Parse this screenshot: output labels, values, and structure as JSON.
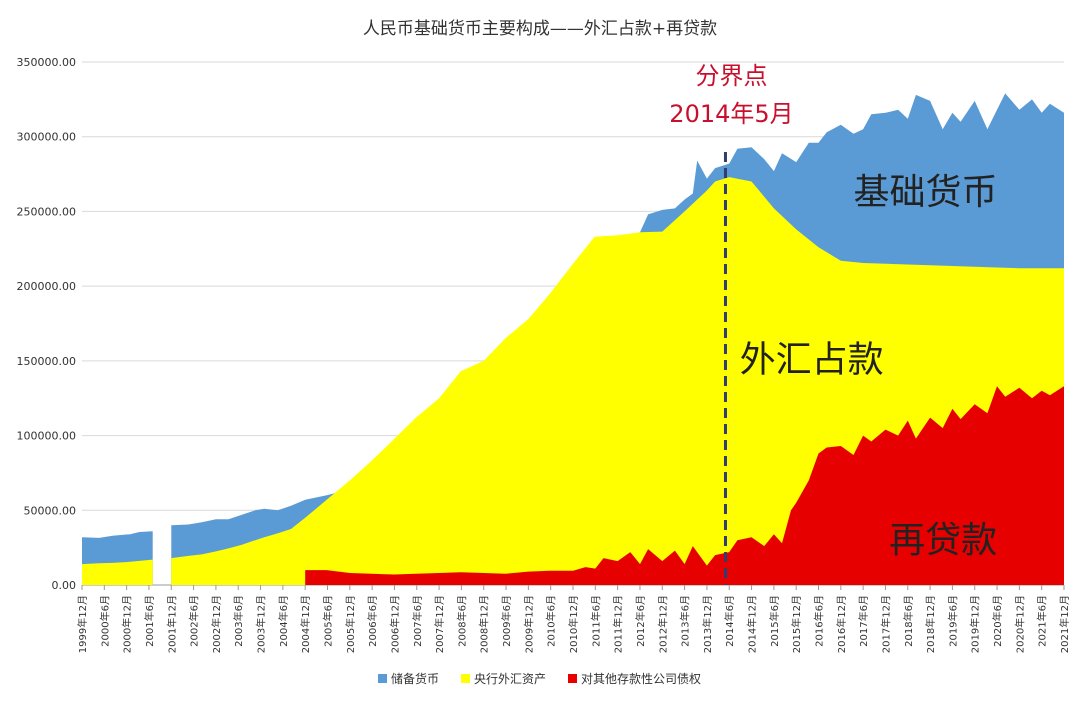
{
  "chart_data": {
    "type": "area",
    "title": "人民币基础货币主要构成——外汇占款+再贷款",
    "ylim": [
      0,
      350000
    ],
    "y_ticks": [
      "0.00",
      "50000.00",
      "100000.00",
      "150000.00",
      "200000.00",
      "250000.00",
      "300000.00",
      "350000.00"
    ],
    "y_tick_values": [
      0,
      50000,
      100000,
      150000,
      200000,
      250000,
      300000,
      350000
    ],
    "x_tick_labels": [
      "1999年12月",
      "2000年6月",
      "2000年12月",
      "2001年6月",
      "2001年12月",
      "2002年6月",
      "2002年12月",
      "2003年6月",
      "2003年12月",
      "2004年6月",
      "2004年12月",
      "2005年6月",
      "2005年12月",
      "2006年6月",
      "2006年12月",
      "2007年6月",
      "2007年12月",
      "2008年6月",
      "2008年12月",
      "2009年6月",
      "2009年12月",
      "2010年6月",
      "2010年12月",
      "2011年6月",
      "2011年12月",
      "2012年6月",
      "2012年12月",
      "2013年6月",
      "2013年12月",
      "2014年6月",
      "2014年12月",
      "2015年6月",
      "2015年12月",
      "2016年6月",
      "2016年12月",
      "2017年6月",
      "2017年12月",
      "2018年6月",
      "2018年12月",
      "2019年6月",
      "2019年12月",
      "2020年6月",
      "2020年12月",
      "2021年6月",
      "2021年12月"
    ],
    "x_dates": [
      1999.917,
      2000.417,
      2000.917,
      2001.417,
      2001.917,
      2002.417,
      2002.917,
      2003.417,
      2003.917,
      2004.417,
      2004.917,
      2005.417,
      2005.917,
      2006.417,
      2006.917,
      2007.417,
      2007.917,
      2008.417,
      2008.917,
      2009.417,
      2009.917,
      2010.417,
      2010.917,
      2011.417,
      2011.917,
      2012.417,
      2012.917,
      2013.417,
      2013.917,
      2014.417,
      2014.917,
      2015.417,
      2015.917,
      2016.417,
      2016.917,
      2017.417,
      2017.917,
      2018.417,
      2018.917,
      2019.417,
      2019.917,
      2020.417,
      2020.917,
      2021.417,
      2021.917
    ],
    "x_range": [
      1999.917,
      2021.917
    ],
    "series": [
      {
        "name": "储备货币",
        "color": "#5b9bd5",
        "points": [
          [
            1999.917,
            32000
          ],
          [
            2000.3,
            31500
          ],
          [
            2000.6,
            33000
          ],
          [
            2001.0,
            34000
          ],
          [
            2001.2,
            35500
          ],
          [
            2001.5,
            36000
          ],
          [
            2001.917,
            40000
          ],
          [
            2002.3,
            40500
          ],
          [
            2002.6,
            42000
          ],
          [
            2002.917,
            44000
          ],
          [
            2003.2,
            44000
          ],
          [
            2003.5,
            47000
          ],
          [
            2003.8,
            50000
          ],
          [
            2004.0,
            51000
          ],
          [
            2004.3,
            50000
          ],
          [
            2004.6,
            53000
          ],
          [
            2004.917,
            57000
          ],
          [
            2005.4,
            60000
          ],
          [
            2005.917,
            64000
          ],
          [
            2006.4,
            68000
          ],
          [
            2006.917,
            76000
          ],
          [
            2007.4,
            86000
          ],
          [
            2007.917,
            101000
          ],
          [
            2008.4,
            118000
          ],
          [
            2008.917,
            129000
          ],
          [
            2009.4,
            144000
          ],
          [
            2009.917,
            162000
          ],
          [
            2010.4,
            185000
          ],
          [
            2010.917,
            206000
          ],
          [
            2011.4,
            224000
          ],
          [
            2011.917,
            232000
          ],
          [
            2012.417,
            236000
          ],
          [
            2012.6,
            248000
          ],
          [
            2012.917,
            251000
          ],
          [
            2013.2,
            252000
          ],
          [
            2013.417,
            258000
          ],
          [
            2013.6,
            262000
          ],
          [
            2013.7,
            284000
          ],
          [
            2013.917,
            272000
          ],
          [
            2014.1,
            279000
          ],
          [
            2014.417,
            282000
          ],
          [
            2014.6,
            292000
          ],
          [
            2014.917,
            293000
          ],
          [
            2015.2,
            285000
          ],
          [
            2015.417,
            277000
          ],
          [
            2015.6,
            289000
          ],
          [
            2015.917,
            283000
          ],
          [
            2016.2,
            296000
          ],
          [
            2016.417,
            296000
          ],
          [
            2016.6,
            303000
          ],
          [
            2016.917,
            308000
          ],
          [
            2017.2,
            302000
          ],
          [
            2017.417,
            305000
          ],
          [
            2017.6,
            315000
          ],
          [
            2017.917,
            316000
          ],
          [
            2018.2,
            318000
          ],
          [
            2018.417,
            312000
          ],
          [
            2018.6,
            328000
          ],
          [
            2018.917,
            324000
          ],
          [
            2019.2,
            305000
          ],
          [
            2019.417,
            316000
          ],
          [
            2019.6,
            310000
          ],
          [
            2019.917,
            324000
          ],
          [
            2020.2,
            305000
          ],
          [
            2020.417,
            318000
          ],
          [
            2020.6,
            329000
          ],
          [
            2020.917,
            318000
          ],
          [
            2021.2,
            325000
          ],
          [
            2021.417,
            316000
          ],
          [
            2021.6,
            322000
          ],
          [
            2021.917,
            316000
          ]
        ]
      },
      {
        "name": "央行外汇资产",
        "color": "#ffff00",
        "points": [
          [
            1999.917,
            14000
          ],
          [
            2000.3,
            14500
          ],
          [
            2000.6,
            14800
          ],
          [
            2001.0,
            15500
          ],
          [
            2001.5,
            17000
          ],
          [
            2001.917,
            18000
          ],
          [
            2002.3,
            19500
          ],
          [
            2002.6,
            20500
          ],
          [
            2002.917,
            22500
          ],
          [
            2003.2,
            24500
          ],
          [
            2003.5,
            27000
          ],
          [
            2003.8,
            30000
          ],
          [
            2004.0,
            32000
          ],
          [
            2004.3,
            34500
          ],
          [
            2004.6,
            37500
          ],
          [
            2004.917,
            45000
          ],
          [
            2005.4,
            57000
          ],
          [
            2005.917,
            70000
          ],
          [
            2006.4,
            83000
          ],
          [
            2006.917,
            98000
          ],
          [
            2007.4,
            112000
          ],
          [
            2007.917,
            125000
          ],
          [
            2008.4,
            143000
          ],
          [
            2008.917,
            150000
          ],
          [
            2009.4,
            165000
          ],
          [
            2009.917,
            178000
          ],
          [
            2010.4,
            195000
          ],
          [
            2010.917,
            215000
          ],
          [
            2011.4,
            233000
          ],
          [
            2011.917,
            234000
          ],
          [
            2012.417,
            236000
          ],
          [
            2012.917,
            236500
          ],
          [
            2013.417,
            250000
          ],
          [
            2013.917,
            264000
          ],
          [
            2014.1,
            270000
          ],
          [
            2014.417,
            273000
          ],
          [
            2014.917,
            270000
          ],
          [
            2015.417,
            252000
          ],
          [
            2015.917,
            238000
          ],
          [
            2016.417,
            226000
          ],
          [
            2016.917,
            217000
          ],
          [
            2017.417,
            215500
          ],
          [
            2017.917,
            215000
          ],
          [
            2018.417,
            214500
          ],
          [
            2018.917,
            214000
          ],
          [
            2019.417,
            213500
          ],
          [
            2019.917,
            213000
          ],
          [
            2020.417,
            212500
          ],
          [
            2020.917,
            212000
          ],
          [
            2021.417,
            212000
          ],
          [
            2021.917,
            212000
          ]
        ]
      },
      {
        "name": "对其他存款性公司债权",
        "color": "#e60000",
        "points": [
          [
            2004.917,
            10000
          ],
          [
            2005.4,
            10000
          ],
          [
            2005.917,
            8000
          ],
          [
            2006.4,
            7500
          ],
          [
            2006.917,
            7000
          ],
          [
            2007.4,
            7500
          ],
          [
            2007.917,
            8000
          ],
          [
            2008.4,
            8500
          ],
          [
            2008.917,
            8000
          ],
          [
            2009.4,
            7500
          ],
          [
            2009.917,
            9000
          ],
          [
            2010.4,
            9500
          ],
          [
            2010.917,
            9500
          ],
          [
            2011.2,
            12000
          ],
          [
            2011.417,
            11000
          ],
          [
            2011.6,
            18000
          ],
          [
            2011.917,
            16000
          ],
          [
            2012.2,
            22000
          ],
          [
            2012.417,
            14000
          ],
          [
            2012.6,
            24000
          ],
          [
            2012.917,
            16000
          ],
          [
            2013.2,
            23000
          ],
          [
            2013.417,
            14000
          ],
          [
            2013.6,
            26000
          ],
          [
            2013.917,
            13000
          ],
          [
            2014.1,
            20000
          ],
          [
            2014.417,
            22000
          ],
          [
            2014.6,
            30000
          ],
          [
            2014.917,
            32000
          ],
          [
            2015.2,
            26000
          ],
          [
            2015.417,
            34000
          ],
          [
            2015.6,
            28000
          ],
          [
            2015.8,
            50000
          ],
          [
            2015.917,
            55000
          ],
          [
            2016.2,
            70000
          ],
          [
            2016.417,
            88000
          ],
          [
            2016.6,
            92000
          ],
          [
            2016.917,
            93000
          ],
          [
            2017.2,
            87000
          ],
          [
            2017.417,
            100000
          ],
          [
            2017.6,
            96000
          ],
          [
            2017.917,
            104000
          ],
          [
            2018.2,
            100000
          ],
          [
            2018.417,
            110000
          ],
          [
            2018.6,
            98000
          ],
          [
            2018.917,
            112000
          ],
          [
            2019.2,
            105000
          ],
          [
            2019.417,
            118000
          ],
          [
            2019.6,
            111000
          ],
          [
            2019.917,
            121000
          ],
          [
            2020.2,
            115000
          ],
          [
            2020.417,
            133000
          ],
          [
            2020.6,
            126000
          ],
          [
            2020.917,
            132000
          ],
          [
            2021.2,
            125000
          ],
          [
            2021.417,
            130000
          ],
          [
            2021.6,
            127000
          ],
          [
            2021.917,
            133000
          ]
        ]
      }
    ],
    "legend_position": "bottom",
    "annotations": {
      "divider_label_1": "分界点",
      "divider_label_2": "2014年5月",
      "divider_date": 2014.333,
      "label_base": "基础货币",
      "label_fx": "外汇占款",
      "label_loan": "再贷款"
    }
  }
}
